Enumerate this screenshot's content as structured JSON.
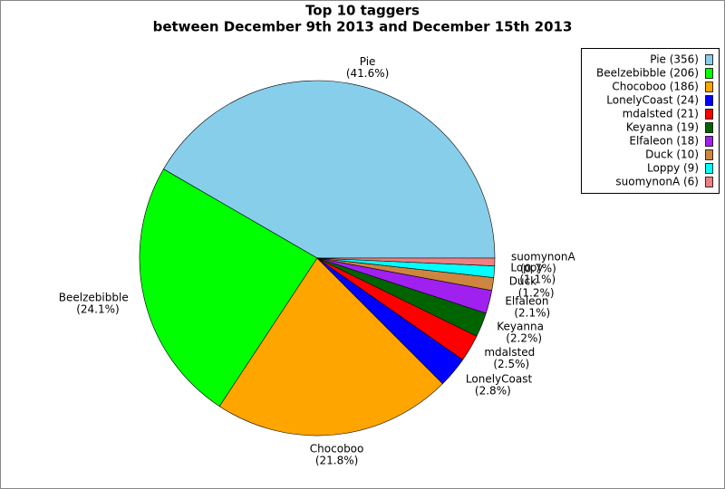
{
  "chart_data": {
    "type": "pie",
    "title": "Top 10 taggers",
    "subtitle": "between December 9th 2013 and December 15th 2013",
    "categories": [
      "Pie",
      "Beelzebibble",
      "Chocoboo",
      "LonelyCoast",
      "mdalsted",
      "Keyanna",
      "Elfaleon",
      "Duck",
      "Loppy",
      "suomynonA"
    ],
    "values": [
      356,
      206,
      186,
      24,
      21,
      19,
      18,
      10,
      9,
      6
    ],
    "slice_labels": [
      "(41.6%)",
      "(24.1%)",
      "(21.8%)",
      "(2.8%)",
      "(2.5%)",
      "(2.2%)",
      "(2.1%)",
      "(1.2%)",
      "(1.1%)",
      "(0.7%)"
    ],
    "legend_labels": [
      "Pie (356)",
      "Beelzebibble (206)",
      "Chocoboo (186)",
      "LonelyCoast (24)",
      "mdalsted (21)",
      "Keyanna (19)",
      "Elfaleon (18)",
      "Duck (10)",
      "Loppy (9)",
      "suomynonA (6)"
    ],
    "colors": [
      "#87ceeb",
      "#00ff00",
      "#ffa500",
      "#0000ff",
      "#ff0000",
      "#006400",
      "#a020f0",
      "#cd853f",
      "#00ffff",
      "#f08080"
    ],
    "legend": "top-right"
  }
}
